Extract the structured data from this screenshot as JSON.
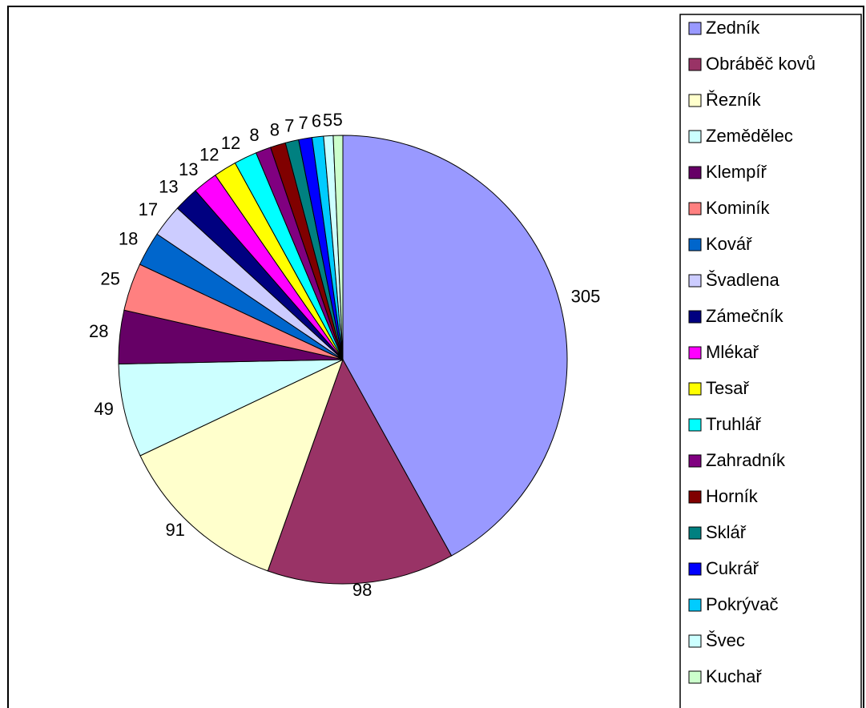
{
  "chart_data": {
    "type": "pie",
    "categories": [
      "Zedník",
      "Obráběč kovů",
      "Řezník",
      "Zemědělec",
      "Klempíř",
      "Kominík",
      "Kovář",
      "Švadlena",
      "Zámečník",
      "Mlékař",
      "Tesař",
      "Truhlář",
      "Zahradník",
      "Horník",
      "Sklář",
      "Cukrář",
      "Pokrývač",
      "Švec",
      "Kuchař"
    ],
    "values": [
      305,
      98,
      91,
      49,
      28,
      25,
      18,
      17,
      13,
      13,
      12,
      12,
      8,
      8,
      7,
      7,
      6,
      5,
      5
    ],
    "colors": [
      "#9999ff",
      "#993366",
      "#ffffcc",
      "#ccffff",
      "#660066",
      "#ff8080",
      "#0066cc",
      "#ccccff",
      "#000080",
      "#ff00ff",
      "#ffff00",
      "#00ffff",
      "#800080",
      "#800000",
      "#008080",
      "#0000ff",
      "#00ccff",
      "#ccffff",
      "#ccffcc"
    ],
    "legend": "right"
  }
}
